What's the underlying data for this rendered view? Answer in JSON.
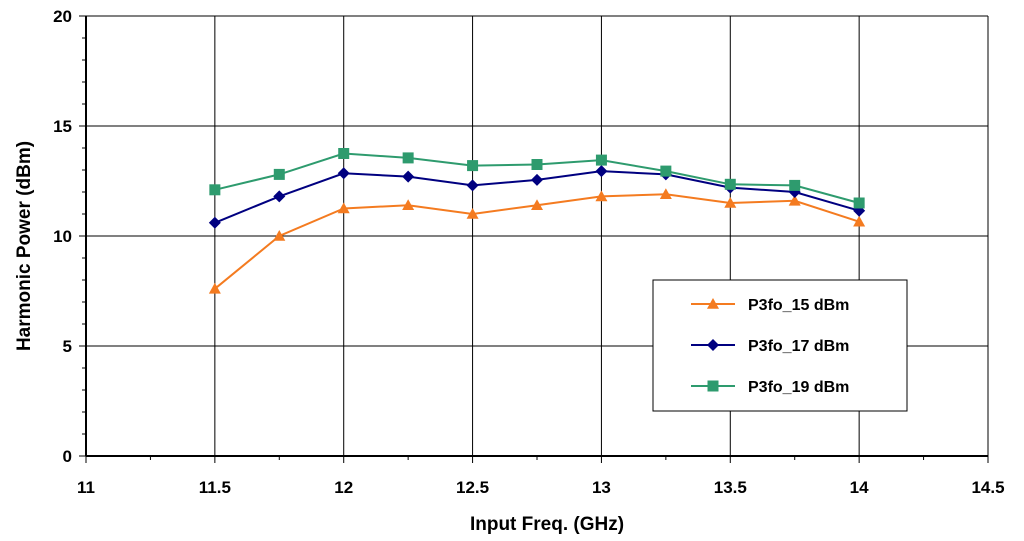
{
  "chart_data": {
    "type": "line",
    "title": "",
    "xlabel": "Input Freq. (GHz)",
    "ylabel": "Harmonic Power (dBm)",
    "xlim": [
      11,
      14.5
    ],
    "ylim": [
      0,
      20
    ],
    "x_ticks": [
      "11",
      "11.5",
      "12",
      "12.5",
      "13",
      "13.5",
      "14",
      "14.5"
    ],
    "y_ticks": [
      "0",
      "5",
      "10",
      "15",
      "20"
    ],
    "grid": true,
    "legend_position": "right",
    "x": [
      11.5,
      11.75,
      12,
      12.25,
      12.5,
      12.75,
      13,
      13.25,
      13.5,
      13.75,
      14
    ],
    "series": [
      {
        "name": "P3fo_15 dBm",
        "color": "#f47b20",
        "marker": "triangle",
        "values": [
          7.6,
          10.0,
          11.25,
          11.4,
          11.0,
          11.4,
          11.8,
          11.9,
          11.5,
          11.6,
          10.65
        ]
      },
      {
        "name": "P3fo_17 dBm",
        "color": "#000080",
        "marker": "diamond",
        "values": [
          10.6,
          11.8,
          12.85,
          12.7,
          12.3,
          12.55,
          12.95,
          12.8,
          12.2,
          12.0,
          11.15
        ]
      },
      {
        "name": "P3fo_19 dBm",
        "color": "#2e9b6e",
        "marker": "square",
        "values": [
          12.1,
          12.8,
          13.75,
          13.55,
          13.2,
          13.25,
          13.45,
          12.95,
          12.35,
          12.3,
          11.5
        ]
      }
    ]
  }
}
